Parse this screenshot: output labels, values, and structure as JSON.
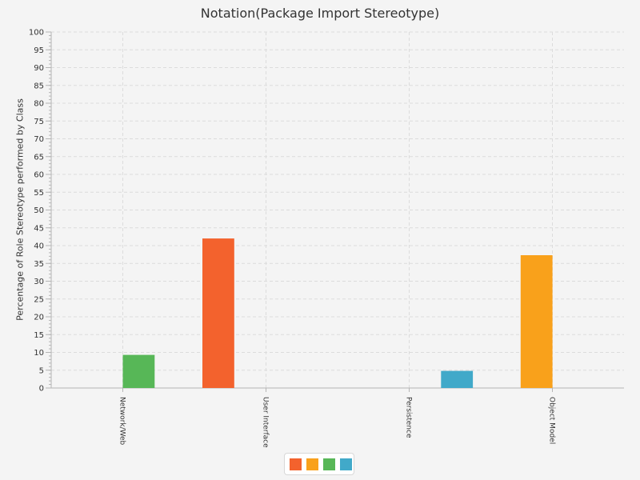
{
  "chart_data": {
    "type": "bar",
    "title": "Notation(Package Import Stereotype)",
    "xlabel": "",
    "ylabel": "Percentage of Role Stereotype performed by Class",
    "categories": [
      "Network/Web",
      "User Interface",
      "Persistence",
      "Object Model"
    ],
    "series": [
      {
        "color": "#f3622d",
        "values": [
          0,
          42,
          0,
          0
        ]
      },
      {
        "color": "#f9a11b",
        "values": [
          0,
          0,
          0,
          37.3
        ]
      },
      {
        "color": "#57b757",
        "values": [
          9.3,
          0,
          0,
          0
        ]
      },
      {
        "color": "#41a9c9",
        "values": [
          0,
          0,
          4.8,
          0
        ]
      }
    ],
    "ylim": [
      0,
      100
    ],
    "ytick_step": 5,
    "grid": true,
    "legend": "bottom-center"
  }
}
